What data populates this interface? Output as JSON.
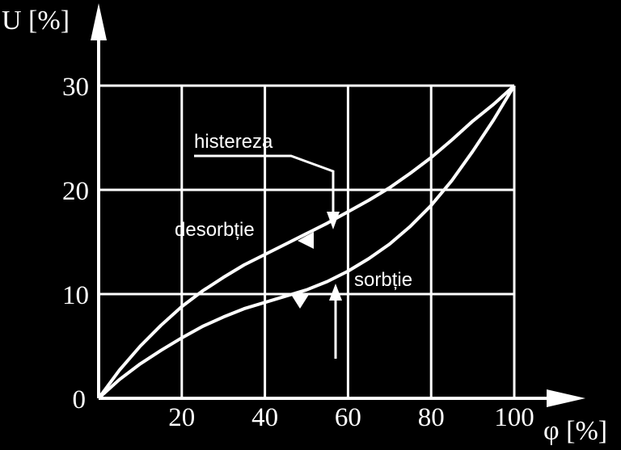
{
  "chart_data": {
    "type": "line",
    "xlabel": "φ [%]",
    "ylabel": "U [%]",
    "xlim": [
      0,
      100
    ],
    "ylim": [
      0,
      30
    ],
    "grid": true,
    "x_ticks": [
      "20",
      "40",
      "60",
      "80",
      "100"
    ],
    "y_ticks": [
      "0",
      "10",
      "20",
      "30"
    ],
    "series": [
      {
        "name": "desorbție",
        "x": [
          0,
          5,
          10,
          15,
          20,
          25,
          30,
          35,
          40,
          45,
          50,
          55,
          60,
          65,
          70,
          75,
          80,
          85,
          90,
          95,
          100
        ],
        "y": [
          0,
          2.7,
          5.0,
          7.0,
          8.8,
          10.3,
          11.6,
          12.8,
          13.8,
          14.8,
          15.8,
          16.8,
          17.9,
          19.0,
          20.2,
          21.6,
          23.1,
          24.8,
          26.6,
          28.2,
          30
        ]
      },
      {
        "name": "sorbție",
        "x": [
          0,
          5,
          10,
          15,
          20,
          25,
          30,
          35,
          40,
          45,
          50,
          55,
          60,
          65,
          70,
          75,
          80,
          85,
          90,
          95,
          100
        ],
        "y": [
          0,
          1.8,
          3.3,
          4.6,
          5.8,
          6.9,
          7.8,
          8.6,
          9.2,
          9.8,
          10.4,
          11.2,
          12.2,
          13.4,
          14.8,
          16.5,
          18.5,
          20.9,
          23.7,
          26.7,
          30
        ]
      }
    ],
    "annotations": [
      "histereza",
      "desorbție",
      "sorbție"
    ]
  }
}
